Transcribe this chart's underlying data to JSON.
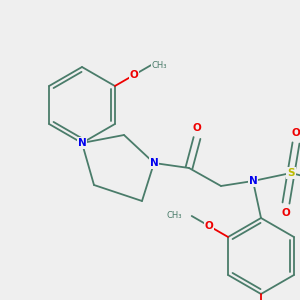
{
  "background_color": "#efefef",
  "bond_color": "#4a7c6a",
  "atom_colors": {
    "N": "#0000ee",
    "O": "#ee0000",
    "S": "#bbbb00",
    "C": "#4a7c6a"
  },
  "figsize": [
    3.0,
    3.0
  ],
  "dpi": 100
}
